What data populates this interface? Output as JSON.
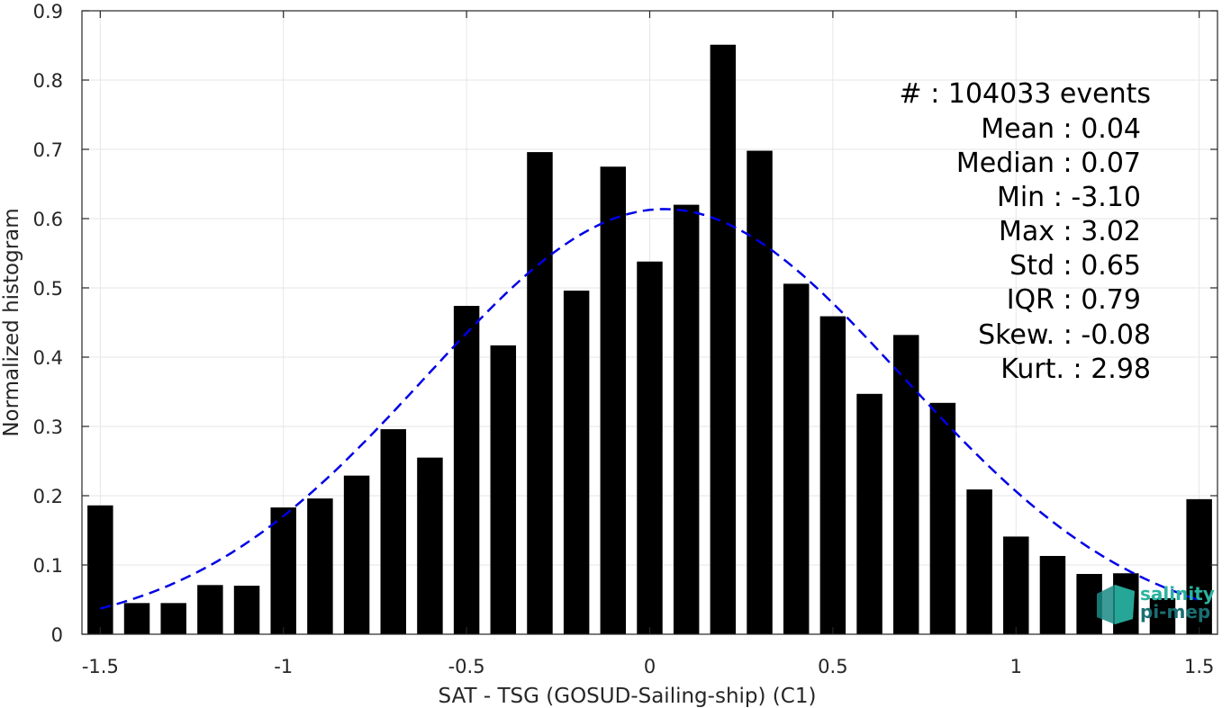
{
  "chart_data": {
    "type": "bar",
    "xlabel": "SAT - TSG (GOSUD-Sailing-ship) (C1)",
    "ylabel": "Normalized histogram",
    "xlim": [
      -1.55,
      1.55
    ],
    "ylim": [
      0,
      0.9
    ],
    "x_ticks": [
      -1.5,
      -1,
      -0.5,
      0,
      0.5,
      1,
      1.5
    ],
    "x_tick_labels": [
      "-1.5",
      "-1",
      "-0.5",
      "0",
      "0.5",
      "1",
      "1.5"
    ],
    "y_ticks": [
      0,
      0.1,
      0.2,
      0.3,
      0.4,
      0.5,
      0.6,
      0.7,
      0.8,
      0.9
    ],
    "y_tick_labels": [
      "0",
      "0.1",
      "0.2",
      "0.3",
      "0.4",
      "0.5",
      "0.6",
      "0.7",
      "0.8",
      "0.9"
    ],
    "grid": true,
    "bar_color": "#000000",
    "bins": [
      {
        "x": -1.5,
        "y": 0.186
      },
      {
        "x": -1.4,
        "y": 0.045
      },
      {
        "x": -1.3,
        "y": 0.045
      },
      {
        "x": -1.2,
        "y": 0.071
      },
      {
        "x": -1.1,
        "y": 0.07
      },
      {
        "x": -1.0,
        "y": 0.183
      },
      {
        "x": -0.9,
        "y": 0.196
      },
      {
        "x": -0.8,
        "y": 0.229
      },
      {
        "x": -0.7,
        "y": 0.296
      },
      {
        "x": -0.6,
        "y": 0.255
      },
      {
        "x": -0.5,
        "y": 0.474
      },
      {
        "x": -0.4,
        "y": 0.417
      },
      {
        "x": -0.3,
        "y": 0.696
      },
      {
        "x": -0.2,
        "y": 0.496
      },
      {
        "x": -0.1,
        "y": 0.675
      },
      {
        "x": 0.0,
        "y": 0.538
      },
      {
        "x": 0.1,
        "y": 0.62
      },
      {
        "x": 0.2,
        "y": 0.851
      },
      {
        "x": 0.3,
        "y": 0.698
      },
      {
        "x": 0.4,
        "y": 0.506
      },
      {
        "x": 0.5,
        "y": 0.459
      },
      {
        "x": 0.6,
        "y": 0.347
      },
      {
        "x": 0.7,
        "y": 0.432
      },
      {
        "x": 0.8,
        "y": 0.334
      },
      {
        "x": 0.9,
        "y": 0.209
      },
      {
        "x": 1.0,
        "y": 0.141
      },
      {
        "x": 1.1,
        "y": 0.113
      },
      {
        "x": 1.2,
        "y": 0.087
      },
      {
        "x": 1.3,
        "y": 0.088
      },
      {
        "x": 1.4,
        "y": 0.052
      },
      {
        "x": 1.5,
        "y": 0.195
      }
    ],
    "fit_curve": {
      "type": "gaussian",
      "style": "dashed",
      "color": "#0000e6",
      "mean": 0.04,
      "std": 0.65,
      "x_range": [
        -1.5,
        1.5
      ]
    },
    "stats_lines": [
      "#  : 104033 events",
      "Mean : 0.04",
      "Median : 0.07",
      "Min : -3.10",
      "Max : 3.02",
      "Std : 0.65",
      "IQR : 0.79",
      "Skew. : -0.08",
      "Kurt. : 2.98"
    ]
  },
  "logo": {
    "line1": "salinity",
    "line2": "pi-mep",
    "color1": "#2ab3a0",
    "color2": "#1a6f73"
  }
}
